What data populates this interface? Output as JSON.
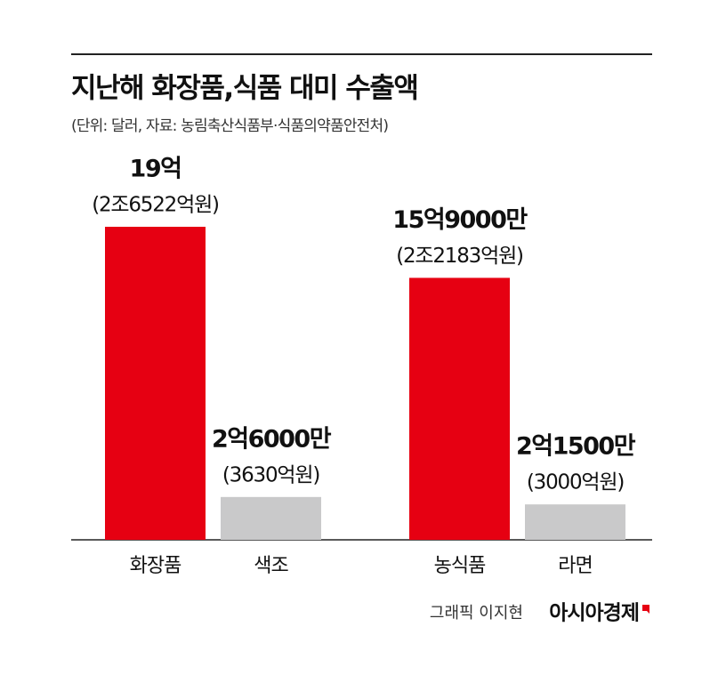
{
  "chart_data": {
    "type": "bar",
    "title": "지난해 화장품,식품 대미 수출액",
    "subtitle": "(단위: 달러, 자료: 농림축산식품부·식품의약품안전처)",
    "categories": [
      "화장품",
      "색조",
      "농식품",
      "라면"
    ],
    "values": [
      19,
      2.6,
      15.9,
      2.15
    ],
    "value_labels": [
      "19억",
      "2억6000만",
      "15억9000만",
      "2억1500만"
    ],
    "krw_labels": [
      "(2조6522억원)",
      "(3630억원)",
      "(2조2183억원)",
      "(3000억원)"
    ],
    "colors": [
      "#e60012",
      "#c9c9ca",
      "#e60012",
      "#c9c9ca"
    ],
    "credit": "그래픽 이지현",
    "source_logo": "아시아경제"
  }
}
